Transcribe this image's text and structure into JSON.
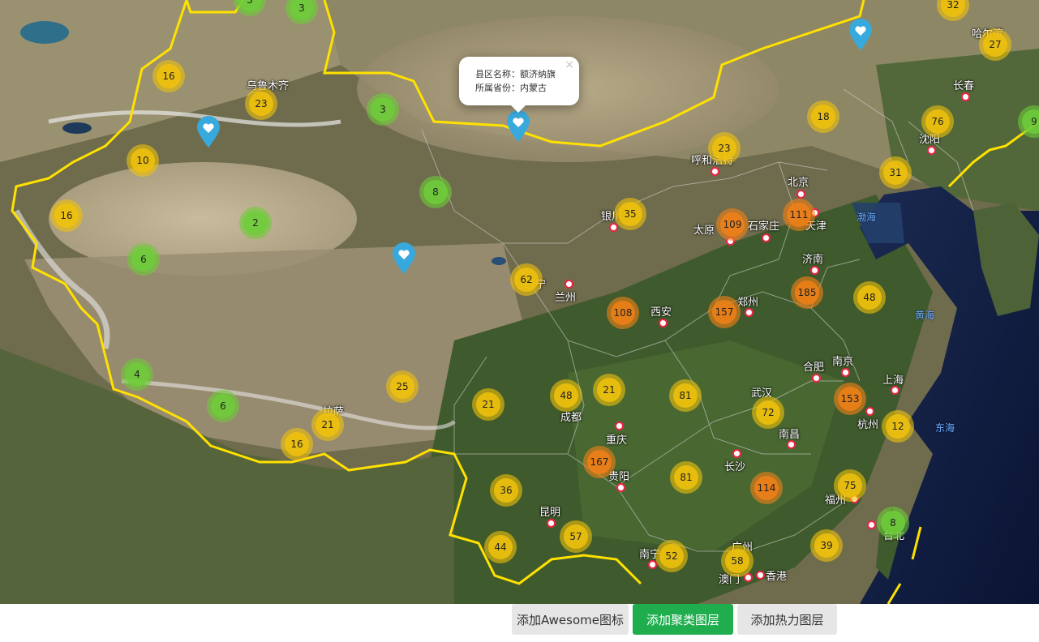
{
  "popup": {
    "line1": "县区名称：额济纳旗",
    "line2": "所属省份：内蒙古",
    "close": "×"
  },
  "toolbar": {
    "awesome_label": "添加Awesome图标",
    "cluster_label": "添加聚类图层",
    "heat_label": "添加热力图层"
  },
  "cities": [
    "乌鲁木齐",
    "呼和浩特",
    "北京",
    "天津",
    "石家庄",
    "太原",
    "银川",
    "兰州",
    "西宁",
    "西安",
    "郑州",
    "济南",
    "合肥",
    "南京",
    "上海",
    "杭州",
    "武汉",
    "长沙",
    "南昌",
    "福州",
    "台北",
    "广州",
    "南宁",
    "澳门",
    "香港",
    "贵阳",
    "昆明",
    "成都",
    "重庆",
    "拉萨",
    "沈阳",
    "长春",
    "哈尔滨"
  ],
  "seas": [
    "渤海",
    "黄海",
    "东海"
  ],
  "clusters": [
    {
      "count": "3",
      "level": "small"
    },
    {
      "count": "3",
      "level": "small"
    },
    {
      "count": "32",
      "level": "medium"
    },
    {
      "count": "16",
      "level": "medium"
    },
    {
      "count": "23",
      "level": "medium"
    },
    {
      "count": "3",
      "level": "small"
    },
    {
      "count": "27",
      "level": "medium"
    },
    {
      "count": "18",
      "level": "medium"
    },
    {
      "count": "76",
      "level": "medium"
    },
    {
      "count": "9",
      "level": "small"
    },
    {
      "count": "10",
      "level": "medium"
    },
    {
      "count": "23",
      "level": "medium"
    },
    {
      "count": "31",
      "level": "medium"
    },
    {
      "count": "8",
      "level": "small"
    },
    {
      "count": "16",
      "level": "medium"
    },
    {
      "count": "2",
      "level": "small"
    },
    {
      "count": "35",
      "level": "medium"
    },
    {
      "count": "109",
      "level": "large"
    },
    {
      "count": "111",
      "level": "large"
    },
    {
      "count": "6",
      "level": "small"
    },
    {
      "count": "62",
      "level": "medium"
    },
    {
      "count": "185",
      "level": "large"
    },
    {
      "count": "48",
      "level": "medium"
    },
    {
      "count": "108",
      "level": "large"
    },
    {
      "count": "157",
      "level": "large"
    },
    {
      "count": "4",
      "level": "small"
    },
    {
      "count": "25",
      "level": "medium"
    },
    {
      "count": "21",
      "level": "medium"
    },
    {
      "count": "48",
      "level": "medium"
    },
    {
      "count": "21",
      "level": "medium"
    },
    {
      "count": "81",
      "level": "medium"
    },
    {
      "count": "153",
      "level": "large"
    },
    {
      "count": "6",
      "level": "small"
    },
    {
      "count": "21",
      "level": "medium"
    },
    {
      "count": "72",
      "level": "medium"
    },
    {
      "count": "12",
      "level": "medium"
    },
    {
      "count": "16",
      "level": "medium"
    },
    {
      "count": "167",
      "level": "large"
    },
    {
      "count": "36",
      "level": "medium"
    },
    {
      "count": "81",
      "level": "medium"
    },
    {
      "count": "114",
      "level": "large"
    },
    {
      "count": "75",
      "level": "medium"
    },
    {
      "count": "8",
      "level": "small"
    },
    {
      "count": "44",
      "level": "medium"
    },
    {
      "count": "57",
      "level": "medium"
    },
    {
      "count": "52",
      "level": "medium"
    },
    {
      "count": "58",
      "level": "medium"
    },
    {
      "count": "39",
      "level": "medium"
    }
  ],
  "markers": [
    {
      "name": "heart-marker",
      "icon": "heart-icon",
      "color": "#38a9dc"
    },
    {
      "name": "heart-marker",
      "icon": "heart-icon",
      "color": "#38a9dc"
    },
    {
      "name": "heart-marker",
      "icon": "heart-icon",
      "color": "#38a9dc"
    },
    {
      "name": "heart-marker",
      "icon": "heart-icon",
      "color": "#38a9dc"
    }
  ],
  "colors": {
    "cluster_small": "#6ecc39",
    "cluster_medium": "#f0c20c",
    "cluster_large": "#f18017",
    "border": "#ffe100",
    "button_active": "#1fad4e"
  }
}
